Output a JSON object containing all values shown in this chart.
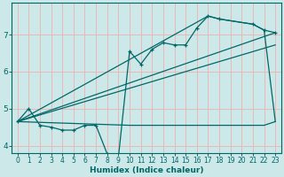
{
  "xlabel": "Humidex (Indice chaleur)",
  "xlim": [
    -0.5,
    23.5
  ],
  "ylim": [
    3.8,
    7.85
  ],
  "yticks": [
    4,
    5,
    6,
    7
  ],
  "xticks": [
    0,
    1,
    2,
    3,
    4,
    5,
    6,
    7,
    8,
    9,
    10,
    11,
    12,
    13,
    14,
    15,
    16,
    17,
    18,
    19,
    20,
    21,
    22,
    23
  ],
  "bg_color": "#cce8e8",
  "grid_color": "#e8b8b8",
  "line_color": "#006868",
  "main_x": [
    0,
    1,
    2,
    3,
    4,
    5,
    6,
    7,
    8,
    9,
    10,
    11,
    12,
    13,
    14,
    15,
    16,
    17,
    18,
    21,
    22,
    23
  ],
  "main_y": [
    4.65,
    5.0,
    4.55,
    4.5,
    4.42,
    4.42,
    4.55,
    4.55,
    3.78,
    3.68,
    6.55,
    6.2,
    6.6,
    6.78,
    6.72,
    6.72,
    7.18,
    7.5,
    7.42,
    7.28,
    7.12,
    7.05
  ],
  "trend1_x": [
    0,
    23
  ],
  "trend1_y": [
    4.65,
    6.72
  ],
  "trend2_x": [
    0,
    23
  ],
  "trend2_y": [
    4.65,
    7.05
  ],
  "envelope_upper_x": [
    0,
    17,
    18,
    21,
    22,
    23
  ],
  "envelope_upper_y": [
    4.65,
    7.5,
    7.42,
    7.28,
    7.12,
    4.65
  ],
  "envelope_lower_x": [
    0,
    10,
    19,
    22,
    23
  ],
  "envelope_lower_y": [
    4.65,
    4.55,
    4.55,
    4.55,
    4.65
  ]
}
